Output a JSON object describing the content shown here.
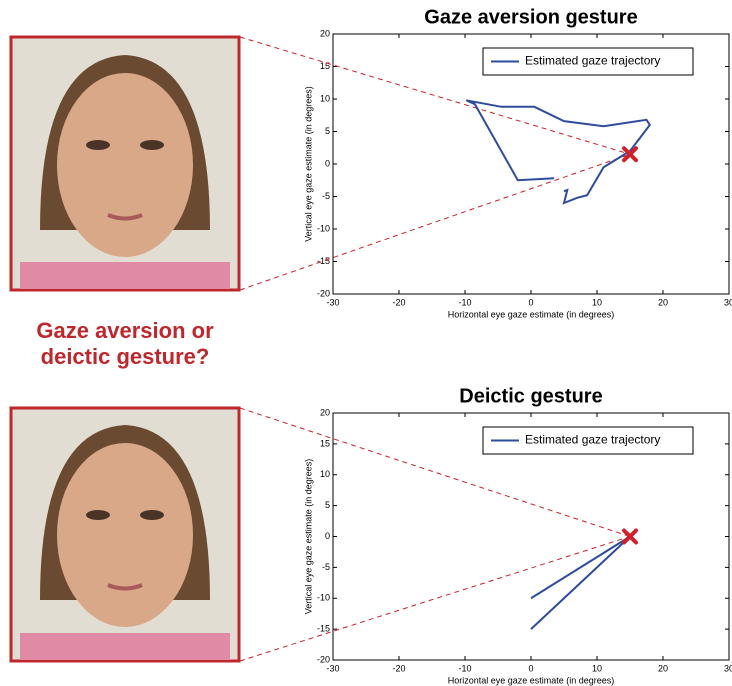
{
  "caption": [
    "Gaze aversion or",
    "deictic gesture?"
  ],
  "chart_data": [
    {
      "type": "line",
      "title": "Gaze aversion gesture",
      "xlabel": "Horizontal eye gaze estimate (in degrees)",
      "ylabel": "Vertical eye gaze estimate (in degrees)",
      "xlim": [
        -30,
        30
      ],
      "ylim": [
        -20,
        20
      ],
      "xticks": [
        -30,
        -20,
        -10,
        0,
        10,
        20,
        30
      ],
      "yticks": [
        -20,
        -15,
        -10,
        -5,
        0,
        5,
        10,
        15,
        20
      ],
      "legend": "upper right",
      "series": [
        {
          "name": "Estimated gaze trajectory",
          "color": "#2e4b9e",
          "x": [
            3.5,
            -2,
            -8.5,
            -9.8,
            -4.5,
            0.5,
            5,
            11,
            17.5,
            18,
            15,
            11,
            8.5,
            7,
            5,
            5.5,
            5
          ],
          "values": [
            -2.2,
            -2.5,
            9.2,
            9.8,
            8.8,
            8.8,
            6.6,
            5.8,
            6.8,
            6,
            2,
            -0.5,
            -4.8,
            -5.2,
            -6,
            -4,
            -4.2
          ]
        }
      ],
      "marker": {
        "x": 15,
        "y": 1.5,
        "color": "#d0202a"
      }
    },
    {
      "type": "line",
      "title": "Deictic gesture",
      "xlabel": "Horizontal eye gaze estimate (in degrees)",
      "ylabel": "Vertical eye gaze estimate (in degrees)",
      "xlim": [
        -30,
        30
      ],
      "ylim": [
        -20,
        20
      ],
      "xticks": [
        -30,
        -20,
        -10,
        0,
        10,
        20,
        30
      ],
      "yticks": [
        -20,
        -15,
        -10,
        -5,
        0,
        5,
        10,
        15,
        20
      ],
      "legend": "upper right",
      "series": [
        {
          "name": "Estimated gaze trajectory",
          "color": "#2e4b9e",
          "x": [
            0,
            15,
            0
          ],
          "values": [
            -10,
            0,
            -15
          ]
        }
      ],
      "marker": {
        "x": 15,
        "y": 0,
        "color": "#d0202a"
      }
    }
  ]
}
